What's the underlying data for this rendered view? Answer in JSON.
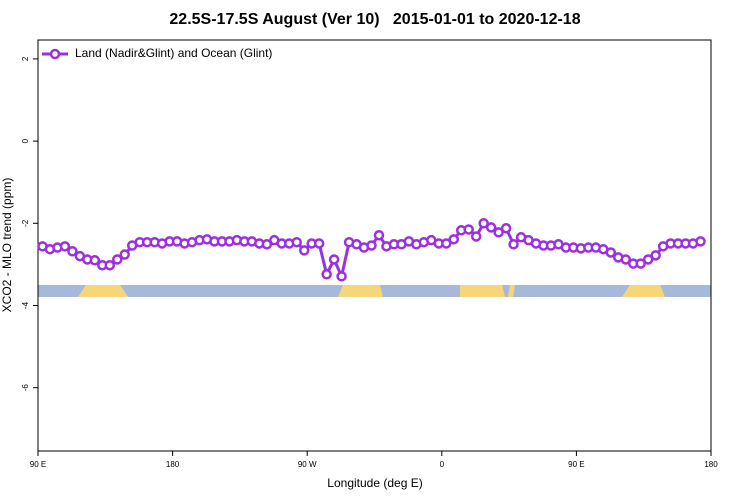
{
  "chart_data": {
    "type": "line",
    "title": "22.5S-17.5S August (Ver 10)   2015-01-01 to 2020-12-18",
    "xlabel": "Longitude (deg E)",
    "ylabel": "XCO2 - MLO trend (ppm)",
    "xlim": [
      90,
      540
    ],
    "xticks": [
      {
        "value": 90,
        "label": "90 E"
      },
      180,
      {
        "value": 270,
        "label": "90 W"
      },
      {
        "value": 360,
        "label": "0"
      },
      {
        "value": 450,
        "label": "90 E"
      },
      {
        "value": 540,
        "label": "180"
      }
    ],
    "ylim": [
      -7.54,
      2.46
    ],
    "yticks": [
      2,
      0,
      -2,
      -4,
      -6
    ],
    "legend": "top-left",
    "x": [
      93,
      98,
      103,
      108,
      113,
      118,
      123,
      128,
      133,
      138,
      143,
      148,
      153,
      158,
      163,
      168,
      173,
      178,
      183,
      188,
      193,
      198,
      203,
      208,
      213,
      218,
      223,
      228,
      233,
      238,
      243,
      248,
      253,
      258,
      263,
      268,
      273,
      278,
      283,
      288,
      293,
      298,
      303,
      308,
      313,
      318,
      323,
      328,
      333,
      338,
      343,
      348,
      353,
      358,
      363,
      368,
      373,
      378,
      383,
      388,
      393,
      398,
      403,
      408,
      413,
      418,
      423,
      428,
      433,
      438,
      443,
      448,
      453,
      458,
      463,
      468,
      473,
      478,
      483,
      488,
      493,
      498,
      503,
      508,
      513,
      518,
      523,
      528,
      533
    ],
    "series": [
      {
        "name": "Land (Nadir&Glint) and Ocean (Glint)",
        "color": "#9b30e0",
        "values": [
          -2.56,
          -2.63,
          -2.59,
          -2.56,
          -2.68,
          -2.8,
          -2.88,
          -2.9,
          -3.02,
          -3.02,
          -2.88,
          -2.76,
          -2.54,
          -2.46,
          -2.46,
          -2.46,
          -2.49,
          -2.44,
          -2.44,
          -2.49,
          -2.46,
          -2.41,
          -2.39,
          -2.44,
          -2.44,
          -2.44,
          -2.41,
          -2.44,
          -2.44,
          -2.49,
          -2.51,
          -2.41,
          -2.49,
          -2.49,
          -2.46,
          -2.66,
          -2.49,
          -2.49,
          -3.24,
          -2.88,
          -3.29,
          -2.46,
          -2.51,
          -2.59,
          -2.54,
          -2.29,
          -2.56,
          -2.51,
          -2.51,
          -2.44,
          -2.51,
          -2.46,
          -2.41,
          -2.49,
          -2.49,
          -2.39,
          -2.17,
          -2.15,
          -2.32,
          -2.0,
          -2.1,
          -2.22,
          -2.12,
          -2.51,
          -2.34,
          -2.41,
          -2.49,
          -2.54,
          -2.54,
          -2.51,
          -2.59,
          -2.59,
          -2.61,
          -2.59,
          -2.59,
          -2.63,
          -2.71,
          -2.83,
          -2.88,
          -2.98,
          -2.98,
          -2.88,
          -2.78,
          -2.56,
          -2.49,
          -2.49,
          -2.49,
          -2.49,
          -2.44
        ]
      }
    ]
  }
}
